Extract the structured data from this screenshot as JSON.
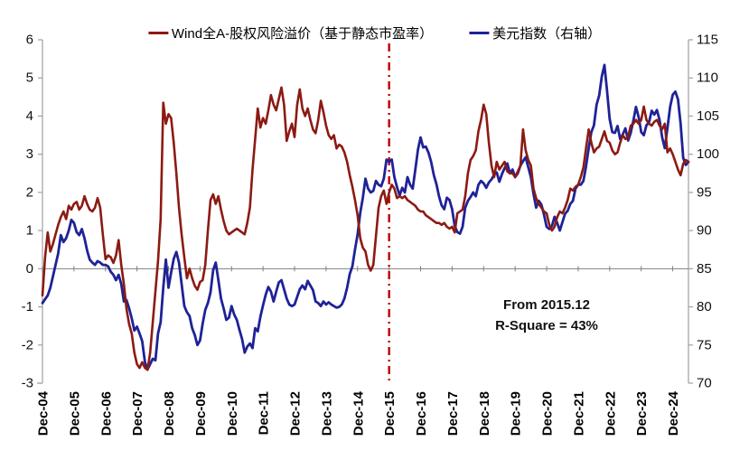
{
  "page_bg": "#FFFFFF",
  "legend": [
    {
      "label": "Wind全A-股权风险溢价（基于静态市盈率）",
      "color": "#8C1A12"
    },
    {
      "label": "美元指数（右轴）",
      "color": "#1F2296"
    }
  ],
  "annotation": {
    "line1": "From 2015.12",
    "line2": "R-Square = 43%"
  },
  "chart_data": {
    "type": "line",
    "title": "",
    "x_start": "Dec-2004",
    "x_step_months": 1,
    "x_tick_labels": [
      "Dec-04",
      "Dec-05",
      "Dec-06",
      "Dec-07",
      "Dec-08",
      "Dec-09",
      "Dec-10",
      "Dec-11",
      "Dec-12",
      "Dec-13",
      "Dec-14",
      "Dec-15",
      "Dec-16",
      "Dec-17",
      "Dec-18",
      "Dec-19",
      "Dec-20",
      "Dec-21",
      "Dec-22",
      "Dec-23",
      "Dec-24"
    ],
    "left_axis": {
      "min": -3,
      "max": 6,
      "ticks": [
        6,
        5,
        4,
        3,
        2,
        1,
        0,
        -1,
        -2,
        -3
      ]
    },
    "right_axis": {
      "min": 70,
      "max": 115,
      "ticks": [
        115,
        110,
        105,
        100,
        95,
        90,
        85,
        80,
        75,
        70
      ]
    },
    "grid": "zero-line-only",
    "legend_position": "top",
    "vline": {
      "at_label": "Dec-15",
      "month_index": 132,
      "style": "dash-dot",
      "color": "#C00000"
    },
    "axis_color": "#A0A0A0",
    "zero_line_color": "#808080",
    "series": [
      {
        "name": "美元指数（右轴）",
        "axis": "right",
        "color": "#1F2296",
        "width": 2.8,
        "values": [
          80.5,
          81,
          81.5,
          82.5,
          84,
          85.5,
          87,
          89.4,
          88.5,
          89,
          90,
          91.4,
          91,
          89.8,
          89.4,
          90.2,
          89,
          87.4,
          86.2,
          85.8,
          85.5,
          86,
          85.8,
          85.5,
          85.5,
          85.3,
          84.6,
          84.2,
          83.5,
          84.2,
          83,
          80.7,
          80.9,
          79.8,
          78.5,
          76.9,
          77.4,
          76.5,
          75.5,
          72.8,
          71.8,
          72.5,
          73.2,
          73,
          76.5,
          78,
          82.5,
          86.2,
          82.5,
          84.5,
          86.3,
          87.2,
          85.8,
          83,
          80.1,
          79.3,
          78.8,
          77.2,
          76.3,
          75,
          75.6,
          77.8,
          79.6,
          80.5,
          81.9,
          84.8,
          85.8,
          83.5,
          81.1,
          79.8,
          78.3,
          78.6,
          80.1,
          79,
          78.3,
          77,
          75.8,
          74,
          74.8,
          75.2,
          74.6,
          77.2,
          76.8,
          78.7,
          80.2,
          81.6,
          82.6,
          82,
          80.7,
          82,
          83.2,
          83.5,
          82.3,
          81.1,
          80.3,
          80.1,
          80.3,
          81.3,
          82.3,
          82.8,
          82.3,
          83.4,
          82.8,
          82.2,
          80.7,
          80.5,
          80.1,
          80.7,
          80.3,
          80.6,
          80.3,
          80.1,
          79.9,
          80,
          80.3,
          81.1,
          82.5,
          84.3,
          85.3,
          87.5,
          89.5,
          92.3,
          94.3,
          96.8,
          95.5,
          95,
          95.2,
          96.5,
          96,
          95.8,
          96.8,
          99.3,
          99,
          99.3,
          97,
          95.7,
          94.6,
          95.6,
          95,
          97,
          96,
          95.5,
          98,
          100.6,
          102.2,
          100.9,
          101,
          100.2,
          99,
          97.3,
          96.1,
          94.5,
          93.3,
          92.8,
          94.3,
          94,
          92.8,
          90.6,
          89.8,
          89.6,
          90.5,
          93,
          93.9,
          94.4,
          95,
          94.5,
          96,
          96.5,
          96.2,
          95.6,
          96.3,
          96.7,
          97.3,
          97.6,
          96.4,
          97.4,
          98.2,
          98.8,
          97.5,
          98,
          97,
          97.5,
          98.5,
          99.1,
          99.6,
          98.3,
          97,
          94.8,
          93,
          93.9,
          93.4,
          92.1,
          90.5,
          90.2,
          90.6,
          91.8,
          91,
          90,
          91.1,
          92.2,
          92.6,
          93.5,
          93.9,
          95.5,
          96,
          96,
          96.5,
          98.4,
          100.8,
          102.9,
          103.8,
          106.5,
          107.7,
          110.2,
          111.7,
          108.3,
          104.6,
          102.9,
          102.8,
          103.7,
          102,
          102.6,
          103.4,
          101.8,
          102.8,
          104.4,
          106.2,
          104.9,
          102.9,
          102.5,
          103.8,
          104.2,
          105.7,
          105.2,
          105.8,
          104.5,
          102.2,
          100.8,
          103.4,
          106.2,
          107.8,
          108.2,
          107.2,
          104,
          99.5,
          98.6,
          99
        ]
      },
      {
        "name": "Wind全A-股权风险溢价（基于静态市盈率）",
        "axis": "left",
        "color": "#8C1A12",
        "width": 2.6,
        "values": [
          -0.7,
          0.3,
          0.95,
          0.45,
          0.65,
          0.9,
          1.15,
          1.35,
          1.5,
          1.3,
          1.65,
          1.55,
          1.7,
          1.75,
          1.55,
          1.65,
          1.9,
          1.7,
          1.55,
          1.5,
          1.6,
          1.85,
          1.6,
          0.9,
          0.25,
          0.35,
          0.3,
          0.15,
          0.35,
          0.75,
          0.1,
          -0.4,
          -1.05,
          -1.45,
          -1.7,
          -2.2,
          -2.5,
          -2.6,
          -2.45,
          -2.6,
          -2.65,
          -2.2,
          -1.4,
          -0.6,
          0.2,
          1.3,
          4.35,
          3.8,
          4.05,
          3.95,
          3.3,
          2.5,
          1.6,
          0.9,
          0.3,
          -0.25,
          0,
          -0.25,
          -0.45,
          -0.55,
          -0.35,
          -0.3,
          0.1,
          1,
          1.8,
          1.95,
          1.7,
          1.9,
          1.55,
          1.25,
          1,
          0.9,
          0.95,
          1,
          1.05,
          1,
          0.95,
          0.9,
          1.2,
          1.6,
          2.6,
          3.4,
          4.2,
          3.7,
          3.95,
          3.8,
          4.15,
          4.55,
          4.3,
          4.15,
          4.45,
          4.75,
          4.3,
          3.35,
          3.6,
          3.8,
          3.45,
          4.3,
          4.7,
          4.2,
          4,
          4.2,
          3.9,
          3.65,
          3.55,
          3.9,
          4.4,
          4.1,
          3.75,
          3.5,
          3.4,
          3.5,
          3.15,
          3.25,
          3.2,
          3.05,
          2.8,
          2.45,
          2.15,
          1.8,
          1.4,
          0.8,
          0.55,
          0.45,
          0.1,
          -0.05,
          0.1,
          0.85,
          1.6,
          1.9,
          2.05,
          1.7,
          2,
          2.2,
          2.1,
          1.85,
          1.9,
          1.85,
          1.9,
          1.8,
          1.75,
          1.7,
          1.65,
          1.55,
          1.5,
          1.5,
          1.4,
          1.35,
          1.3,
          1.25,
          1.2,
          1.2,
          1.15,
          1.2,
          1.1,
          1.05,
          1.1,
          0.95,
          1.45,
          1.5,
          1.55,
          1.9,
          2.5,
          2.85,
          2.95,
          3.1,
          3.6,
          3.9,
          4.3,
          4.05,
          3.3,
          2.7,
          2.4,
          2.8,
          2.6,
          2.7,
          2.8,
          2.55,
          2.5,
          2.5,
          2.4,
          2.55,
          2.7,
          3.65,
          3.1,
          2.85,
          2.7,
          2.1,
          1.85,
          1.7,
          1.6,
          1.5,
          1.45,
          1.15,
          1,
          1.1,
          1.35,
          1.5,
          1.45,
          1.6,
          1.8,
          2.1,
          2.05,
          2.15,
          2.2,
          2.4,
          2.65,
          3.15,
          3.65,
          3.3,
          3.05,
          3.15,
          3.2,
          3.4,
          3.6,
          3.35,
          3.3,
          3.1,
          3,
          3.05,
          3.3,
          3.5,
          3.4,
          3.45,
          3.75,
          3.8,
          3.9,
          3.8,
          3.9,
          4.25,
          3.9,
          3.8,
          3.75,
          3.85,
          3.9,
          3.75,
          3.65,
          3.8,
          3.05,
          3.15,
          3,
          2.8,
          2.6,
          2.45,
          2.75,
          2.85,
          2.8
        ]
      }
    ]
  }
}
